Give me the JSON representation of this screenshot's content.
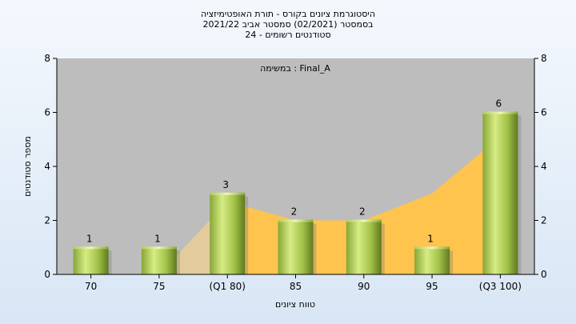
{
  "chart_data": {
    "type": "bar",
    "title_lines": [
      "היסטוגרמת ציונים בקורס - תורת האופטימיזציה",
      "בסמסטר  (02/2021)  סמסטר אביב 2021/22",
      "סטודנטים רשומים - 24"
    ],
    "annotation": "במשימה : Final_A",
    "categories": [
      "70",
      "75",
      "(Q1 80)",
      "85",
      "90",
      "95",
      "(Q3 100)"
    ],
    "values": [
      1,
      1,
      3,
      2,
      2,
      1,
      6
    ],
    "area_values": [
      0,
      0,
      2.7,
      2,
      2,
      3,
      5.1
    ],
    "xlabel": "טווח ציונים",
    "ylabel": "מספר סטודנטים",
    "ylim": [
      0,
      8
    ],
    "yticks": [
      0,
      2,
      4,
      6,
      8
    ],
    "grid": false,
    "colors": {
      "plot_bg": "#bdbdbd",
      "area": "#ffc44d",
      "shadow": "#d0d0d0",
      "bar_light": "#d6ec84",
      "bar_mid": "#a8c84c",
      "bar_dark": "#6c8a24"
    }
  }
}
